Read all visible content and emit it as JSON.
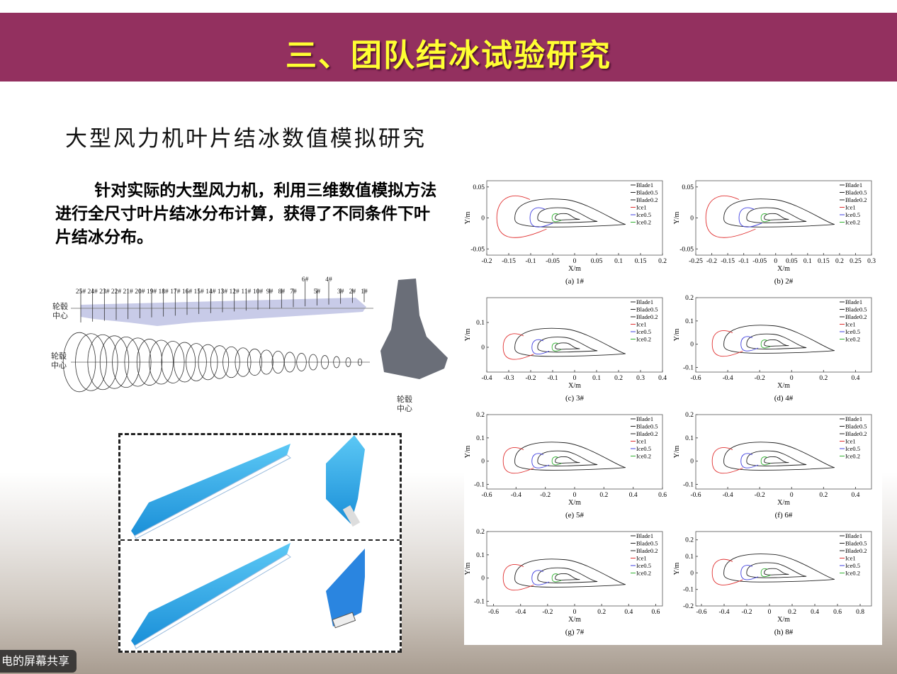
{
  "header": {
    "title": "三、团队结冰试验研究",
    "color": "#93305f",
    "title_color": "#ffff33"
  },
  "subtitle": "大型风力机叶片结冰数值模拟研究",
  "paragraph": "针对实际的大型风力机，利用三维数值模拟方法进行全尺寸叶片结冰分布计算，获得了不同条件下叶片结冰分布。",
  "blade_diagram": {
    "sections": [
      "25#",
      "24#",
      "23#",
      "22#",
      "21#",
      "20#",
      "19#",
      "18#",
      "17#",
      "16#",
      "15#",
      "14#",
      "13#",
      "12#",
      "11#",
      "10#",
      "9#",
      "8#",
      "7#",
      "6#",
      "5#",
      "4#",
      "3#",
      "2#",
      "1#"
    ],
    "hub_label": "轮毂中心"
  },
  "share_badge": "电的屏幕共享",
  "chart_data": [
    {
      "type": "line",
      "caption": "(a)  1#",
      "xlabel": "X/m",
      "ylabel": "Y/m",
      "xlim": [
        -0.2,
        0.2
      ],
      "ylim": [
        -0.06,
        0.06
      ],
      "xticks": [
        "-0.2",
        "-0.15",
        "-0.1",
        "-0.05",
        "0",
        "0.05",
        "0.1",
        "0.15",
        "0.2"
      ],
      "yticks": [
        "-0.05",
        "0",
        "0.05"
      ],
      "legend": [
        "Blade1",
        "Blade0.5",
        "Blade0.2",
        "Ice1",
        "Ice0.5",
        "Ice0.2"
      ]
    },
    {
      "type": "line",
      "caption": "(b)  2#",
      "xlabel": "X/m",
      "ylabel": "Y/m",
      "xlim": [
        -0.25,
        0.3
      ],
      "ylim": [
        -0.06,
        0.06
      ],
      "xticks": [
        "-0.25",
        "-0.2",
        "-0.15",
        "-0.1",
        "-0.05",
        "0",
        "0.05",
        "0.1",
        "0.15",
        "0.2",
        "0.25",
        "0.3"
      ],
      "yticks": [
        "-0.05",
        "0",
        "0.05"
      ],
      "legend": [
        "Blade1",
        "Blade0.5",
        "Blade0.2",
        "Ice1",
        "Ice0.5",
        "Ice0.2"
      ]
    },
    {
      "type": "line",
      "caption": "(c)  3#",
      "xlabel": "X/m",
      "ylabel": "Y/m",
      "xlim": [
        -0.4,
        0.4
      ],
      "ylim": [
        -0.1,
        0.2
      ],
      "xticks": [
        "-0.4",
        "-0.3",
        "-0.2",
        "-0.1",
        "0",
        "0.1",
        "0.2",
        "0.3",
        "0.4"
      ],
      "yticks": [
        "0",
        "0.1"
      ],
      "legend": [
        "Blade1",
        "Blade0.5",
        "Blade0.2",
        "Ice1",
        "Ice0.5",
        "Ice0.2"
      ]
    },
    {
      "type": "line",
      "caption": "(d)  4#",
      "xlabel": "X/m",
      "ylabel": "Y/m",
      "xlim": [
        -0.6,
        0.5
      ],
      "ylim": [
        -0.12,
        0.2
      ],
      "xticks": [
        "-0.6",
        "-0.4",
        "-0.2",
        "0",
        "0.2",
        "0.4"
      ],
      "yticks": [
        "-0.1",
        "0",
        "0.1",
        "0.2"
      ],
      "legend": [
        "Blade1",
        "Blade0.5",
        "Blade0.2",
        "Ice1",
        "Ice0.5",
        "Ice0.2"
      ]
    },
    {
      "type": "line",
      "caption": "(e)  5#",
      "xlabel": "X/m",
      "ylabel": "Y/m",
      "xlim": [
        -0.6,
        0.6
      ],
      "ylim": [
        -0.12,
        0.2
      ],
      "xticks": [
        "-0.6",
        "-0.4",
        "-0.2",
        "0",
        "0.2",
        "0.4",
        "0.6"
      ],
      "yticks": [
        "-0.1",
        "0",
        "0.1",
        "0.2"
      ],
      "legend": [
        "Blade1",
        "Blade0.5",
        "Blade0.2",
        "Ice1",
        "Ice0.5",
        "Ice0.2"
      ]
    },
    {
      "type": "line",
      "caption": "(f)  6#",
      "xlabel": "X/m",
      "ylabel": "Y/m",
      "xlim": [
        -0.6,
        0.5
      ],
      "ylim": [
        -0.12,
        0.2
      ],
      "xticks": [
        "-0.6",
        "-0.4",
        "-0.2",
        "0",
        "0.2",
        "0.4"
      ],
      "yticks": [
        "-0.1",
        "0",
        "0.1",
        "0.2"
      ],
      "legend": [
        "Blade1",
        "Blade0.5",
        "Blade0.2",
        "Ice1",
        "Ice0.5",
        "Ice0.2"
      ]
    },
    {
      "type": "line",
      "caption": "(g)  7#",
      "xlabel": "X/m",
      "ylabel": "Y/m",
      "xlim": [
        -0.65,
        0.65
      ],
      "ylim": [
        -0.12,
        0.2
      ],
      "xticks": [
        "-0.6",
        "-0.4",
        "-0.2",
        "0",
        "0.2",
        "0.4",
        "0.6"
      ],
      "yticks": [
        "-0.1",
        "0",
        "0.1",
        "0.2"
      ],
      "legend": [
        "Blade1",
        "Blade0.5",
        "Blade0.2",
        "Ice1",
        "Ice0.5",
        "Ice0.2"
      ]
    },
    {
      "type": "line",
      "caption": "(h)  8#",
      "xlabel": "X/m",
      "ylabel": "Y/m",
      "xlim": [
        -0.65,
        0.9
      ],
      "ylim": [
        -0.2,
        0.25
      ],
      "xticks": [
        "-0.6",
        "-0.4",
        "-0.2",
        "0",
        "0.2",
        "0.4",
        "0.6",
        "0.8"
      ],
      "yticks": [
        "-0.2",
        "-0.1",
        "0",
        "0.1",
        "0.2"
      ],
      "legend": [
        "Blade1",
        "Blade0.5",
        "Blade0.2",
        "Ice1",
        "Ice0.5",
        "Ice0.2"
      ]
    }
  ],
  "colors": {
    "blade": "#222222",
    "ice1": "#e03030",
    "ice05": "#4040e0",
    "ice02": "#30b030"
  }
}
